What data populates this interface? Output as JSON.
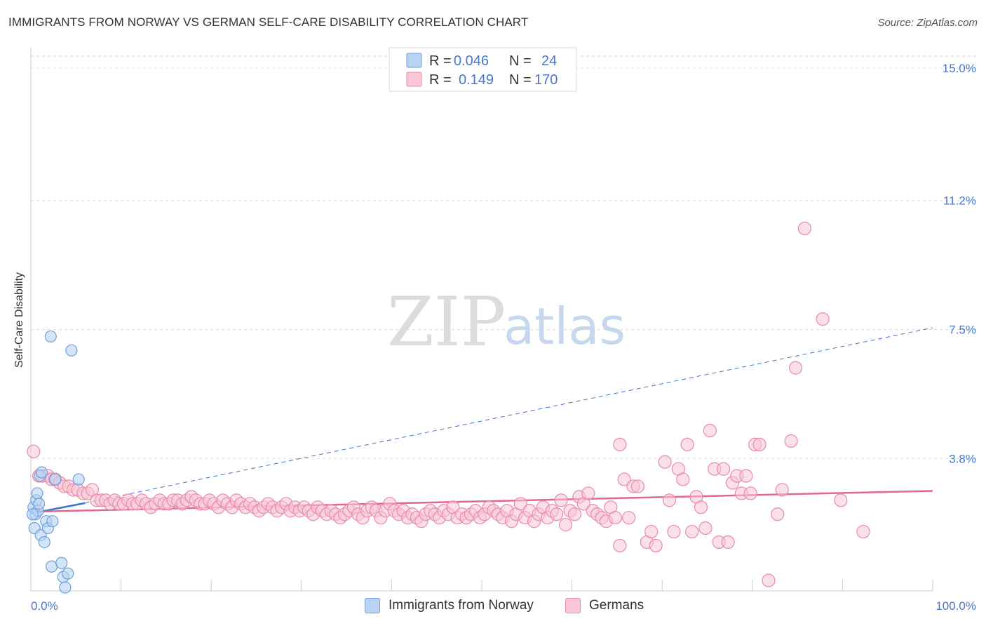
{
  "title": "IMMIGRANTS FROM NORWAY VS GERMAN SELF-CARE DISABILITY CORRELATION CHART",
  "source": "Source: ZipAtlas.com",
  "watermark": {
    "zip": "ZIP",
    "atlas": "atlas"
  },
  "colors": {
    "blue_fill": "#b9d3f3",
    "blue_stroke": "#6f9fdc",
    "blue_line": "#3c72c8",
    "pink_fill": "#f8c6d6",
    "pink_stroke": "#e989a8",
    "pink_line": "#e36790",
    "grid": "#dddddd",
    "axis_text": "#4a77c9"
  },
  "legend": {
    "rows": [
      {
        "r_label": "R =",
        "r_value": "0.046",
        "n_label": "N =",
        "n_value": "24"
      },
      {
        "r_label": "R =",
        "r_value": "0.149",
        "n_label": "N =",
        "n_value": "170"
      }
    ]
  },
  "bottom_legend": [
    "Immigrants from Norway",
    "Germans"
  ],
  "chart_data": {
    "type": "scatter",
    "title": "IMMIGRANTS FROM NORWAY VS GERMAN SELF-CARE DISABILITY CORRELATION CHART",
    "xlabel": "",
    "ylabel": "Self-Care Disability",
    "xlim": [
      0,
      100
    ],
    "ylim": [
      0,
      15.0
    ],
    "x_tick_labels": [
      "0.0%",
      "100.0%"
    ],
    "y_ticks": [
      3.8,
      7.5,
      11.2,
      15.0
    ],
    "y_tick_labels": [
      "3.8%",
      "7.5%",
      "11.2%",
      "15.0%"
    ],
    "grid": true,
    "legend_position": "top-center",
    "series": [
      {
        "name": "Immigrants from Norway",
        "points": [
          [
            0.3,
            2.4
          ],
          [
            0.5,
            2.2
          ],
          [
            0.6,
            2.6
          ],
          [
            0.7,
            2.8
          ],
          [
            0.8,
            2.3
          ],
          [
            0.9,
            2.5
          ],
          [
            0.4,
            1.8
          ],
          [
            1.0,
            3.3
          ],
          [
            1.2,
            3.4
          ],
          [
            1.1,
            1.6
          ],
          [
            1.7,
            2.0
          ],
          [
            1.9,
            1.8
          ],
          [
            2.4,
            2.0
          ],
          [
            2.7,
            3.2
          ],
          [
            1.5,
            1.4
          ],
          [
            2.3,
            0.7
          ],
          [
            3.4,
            0.8
          ],
          [
            3.6,
            0.4
          ],
          [
            4.1,
            0.5
          ],
          [
            3.8,
            0.1
          ],
          [
            5.3,
            3.2
          ],
          [
            2.2,
            7.3
          ],
          [
            4.5,
            6.9
          ],
          [
            0.2,
            2.2
          ]
        ]
      },
      {
        "name": "Germans",
        "points": [
          [
            0.3,
            4.0
          ],
          [
            0.9,
            3.3
          ],
          [
            1.3,
            3.3
          ],
          [
            1.9,
            3.3
          ],
          [
            2.3,
            3.2
          ],
          [
            2.7,
            3.2
          ],
          [
            3.2,
            3.1
          ],
          [
            3.7,
            3.0
          ],
          [
            4.2,
            3.0
          ],
          [
            4.7,
            2.9
          ],
          [
            5.2,
            2.9
          ],
          [
            5.8,
            2.8
          ],
          [
            6.3,
            2.8
          ],
          [
            6.8,
            2.9
          ],
          [
            7.3,
            2.6
          ],
          [
            7.8,
            2.6
          ],
          [
            8.3,
            2.6
          ],
          [
            8.8,
            2.5
          ],
          [
            9.3,
            2.6
          ],
          [
            9.8,
            2.5
          ],
          [
            10.3,
            2.5
          ],
          [
            10.8,
            2.6
          ],
          [
            11.3,
            2.5
          ],
          [
            11.8,
            2.5
          ],
          [
            12.3,
            2.6
          ],
          [
            12.8,
            2.5
          ],
          [
            13.3,
            2.4
          ],
          [
            13.8,
            2.5
          ],
          [
            14.3,
            2.6
          ],
          [
            14.8,
            2.5
          ],
          [
            15.3,
            2.5
          ],
          [
            15.8,
            2.6
          ],
          [
            16.3,
            2.6
          ],
          [
            16.8,
            2.5
          ],
          [
            17.3,
            2.6
          ],
          [
            17.8,
            2.7
          ],
          [
            18.3,
            2.6
          ],
          [
            18.8,
            2.5
          ],
          [
            19.3,
            2.5
          ],
          [
            19.8,
            2.6
          ],
          [
            20.3,
            2.5
          ],
          [
            20.8,
            2.4
          ],
          [
            21.3,
            2.6
          ],
          [
            21.8,
            2.5
          ],
          [
            22.3,
            2.4
          ],
          [
            22.8,
            2.6
          ],
          [
            23.3,
            2.5
          ],
          [
            23.8,
            2.4
          ],
          [
            24.3,
            2.5
          ],
          [
            24.8,
            2.4
          ],
          [
            25.3,
            2.3
          ],
          [
            25.8,
            2.4
          ],
          [
            26.3,
            2.5
          ],
          [
            26.8,
            2.4
          ],
          [
            27.3,
            2.3
          ],
          [
            27.8,
            2.4
          ],
          [
            28.3,
            2.5
          ],
          [
            28.8,
            2.3
          ],
          [
            29.3,
            2.4
          ],
          [
            29.8,
            2.3
          ],
          [
            30.3,
            2.4
          ],
          [
            30.8,
            2.3
          ],
          [
            31.3,
            2.2
          ],
          [
            31.8,
            2.4
          ],
          [
            32.3,
            2.3
          ],
          [
            32.8,
            2.2
          ],
          [
            33.3,
            2.3
          ],
          [
            33.8,
            2.2
          ],
          [
            34.3,
            2.1
          ],
          [
            34.8,
            2.2
          ],
          [
            35.3,
            2.3
          ],
          [
            35.8,
            2.4
          ],
          [
            36.3,
            2.2
          ],
          [
            36.8,
            2.1
          ],
          [
            37.3,
            2.3
          ],
          [
            37.8,
            2.4
          ],
          [
            38.3,
            2.3
          ],
          [
            38.8,
            2.1
          ],
          [
            39.3,
            2.3
          ],
          [
            39.8,
            2.5
          ],
          [
            40.3,
            2.3
          ],
          [
            40.8,
            2.2
          ],
          [
            41.3,
            2.3
          ],
          [
            41.8,
            2.1
          ],
          [
            42.3,
            2.2
          ],
          [
            42.8,
            2.1
          ],
          [
            43.3,
            2.0
          ],
          [
            43.8,
            2.2
          ],
          [
            44.3,
            2.3
          ],
          [
            44.8,
            2.2
          ],
          [
            45.3,
            2.1
          ],
          [
            45.8,
            2.3
          ],
          [
            46.3,
            2.2
          ],
          [
            46.8,
            2.4
          ],
          [
            47.3,
            2.1
          ],
          [
            47.8,
            2.2
          ],
          [
            48.3,
            2.1
          ],
          [
            48.8,
            2.2
          ],
          [
            49.3,
            2.3
          ],
          [
            49.8,
            2.1
          ],
          [
            50.3,
            2.2
          ],
          [
            50.8,
            2.4
          ],
          [
            51.3,
            2.3
          ],
          [
            51.8,
            2.2
          ],
          [
            52.3,
            2.1
          ],
          [
            52.8,
            2.3
          ],
          [
            53.3,
            2.0
          ],
          [
            53.8,
            2.2
          ],
          [
            54.3,
            2.5
          ],
          [
            54.8,
            2.1
          ],
          [
            55.3,
            2.3
          ],
          [
            55.8,
            2.0
          ],
          [
            56.3,
            2.2
          ],
          [
            56.8,
            2.4
          ],
          [
            57.3,
            2.1
          ],
          [
            57.8,
            2.3
          ],
          [
            58.3,
            2.2
          ],
          [
            58.8,
            2.6
          ],
          [
            59.3,
            1.9
          ],
          [
            59.8,
            2.3
          ],
          [
            60.3,
            2.2
          ],
          [
            60.8,
            2.7
          ],
          [
            61.3,
            2.5
          ],
          [
            61.8,
            2.8
          ],
          [
            62.3,
            2.3
          ],
          [
            62.8,
            2.2
          ],
          [
            63.3,
            2.1
          ],
          [
            63.8,
            2.0
          ],
          [
            64.3,
            2.4
          ],
          [
            64.8,
            2.1
          ],
          [
            65.3,
            4.2
          ],
          [
            65.8,
            3.2
          ],
          [
            66.3,
            2.1
          ],
          [
            66.8,
            3.0
          ],
          [
            67.3,
            3.0
          ],
          [
            68.3,
            1.4
          ],
          [
            68.8,
            1.7
          ],
          [
            69.3,
            1.3
          ],
          [
            70.3,
            3.7
          ],
          [
            70.8,
            2.6
          ],
          [
            71.3,
            1.7
          ],
          [
            71.8,
            3.5
          ],
          [
            72.3,
            3.2
          ],
          [
            72.8,
            4.2
          ],
          [
            73.3,
            1.7
          ],
          [
            73.8,
            2.7
          ],
          [
            74.3,
            2.4
          ],
          [
            74.8,
            1.8
          ],
          [
            75.3,
            4.6
          ],
          [
            75.8,
            3.5
          ],
          [
            76.3,
            1.4
          ],
          [
            76.8,
            3.5
          ],
          [
            77.3,
            1.4
          ],
          [
            77.8,
            3.1
          ],
          [
            78.3,
            3.3
          ],
          [
            78.8,
            2.8
          ],
          [
            79.3,
            3.3
          ],
          [
            79.8,
            2.8
          ],
          [
            80.3,
            4.2
          ],
          [
            80.8,
            4.2
          ],
          [
            81.8,
            0.3
          ],
          [
            82.8,
            2.2
          ],
          [
            83.3,
            2.9
          ],
          [
            84.3,
            4.3
          ],
          [
            84.8,
            6.4
          ],
          [
            85.8,
            10.4
          ],
          [
            87.8,
            7.8
          ],
          [
            89.8,
            2.6
          ],
          [
            92.3,
            1.7
          ],
          [
            65.3,
            1.3
          ]
        ]
      }
    ],
    "trend_lines": [
      {
        "series": "Immigrants from Norway",
        "solid": [
          [
            0,
            2.22
          ],
          [
            6,
            2.52
          ]
        ],
        "dashed": [
          [
            6,
            2.52
          ],
          [
            100,
            7.55
          ]
        ]
      },
      {
        "series": "Germans",
        "solid": [
          [
            0,
            2.27
          ],
          [
            100,
            2.87
          ]
        ]
      }
    ]
  }
}
